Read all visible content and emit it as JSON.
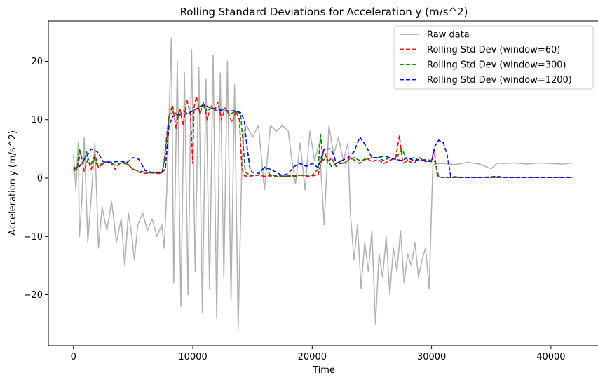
{
  "chart_data": {
    "type": "line",
    "title": "Rolling Standard Deviations for Acceleration y (m/s^2)",
    "xlabel": "Time",
    "ylabel": "Acceleration y (m/s^2)",
    "xlim": [
      -2100,
      44000
    ],
    "ylim": [
      -28.7,
      26.9
    ],
    "xticks": [
      0,
      10000,
      20000,
      30000,
      40000
    ],
    "xtick_labels": [
      "0",
      "10000",
      "20000",
      "30000",
      "40000"
    ],
    "yticks": [
      -20,
      -10,
      0,
      10,
      20
    ],
    "ytick_labels": [
      "−20",
      "−10",
      "0",
      "10",
      "20"
    ],
    "grid": false,
    "legend_position": "top-right",
    "series": [
      {
        "name": "Raw data",
        "color": "#b0b0b0",
        "style": "solid",
        "x": [
          0,
          200,
          400,
          500,
          700,
          900,
          1200,
          1500,
          1800,
          2100,
          2400,
          2800,
          3200,
          3600,
          4000,
          4300,
          4600,
          4900,
          5100,
          5400,
          5800,
          6200,
          6600,
          7000,
          7400,
          7600,
          7800,
          8000,
          8200,
          8400,
          8700,
          9000,
          9300,
          9600,
          9900,
          10200,
          10500,
          10800,
          11100,
          11400,
          11700,
          12000,
          12300,
          12600,
          12900,
          13200,
          13500,
          13800,
          14100,
          14300,
          14500,
          15000,
          15500,
          16000,
          16500,
          17000,
          17500,
          18000,
          18300,
          18600,
          19000,
          19400,
          19800,
          20200,
          20600,
          21000,
          21400,
          21800,
          22200,
          22600,
          23000,
          23200,
          23500,
          23800,
          24100,
          24400,
          24700,
          25000,
          25300,
          25600,
          25900,
          26200,
          26500,
          26800,
          27100,
          27400,
          27700,
          28000,
          28300,
          28600,
          28900,
          29200,
          29500,
          29800,
          30100,
          30300,
          31000,
          32000,
          33000,
          34000,
          35000,
          35500,
          36000,
          37000,
          38000,
          39000,
          40000,
          41000,
          41800
        ],
        "y": [
          4,
          -2,
          6,
          -10,
          -4,
          7,
          -11,
          -3,
          6,
          -12,
          -5,
          -9,
          -4,
          -11,
          -7,
          -15,
          -6,
          -10,
          -14,
          -8,
          -6,
          -9,
          -7,
          -10,
          -8,
          -12,
          -3,
          10,
          24,
          -18,
          20,
          -22,
          18,
          -20,
          22,
          -16,
          19,
          -23,
          17,
          -19,
          21,
          -24,
          18,
          -17,
          20,
          -21,
          16,
          -26,
          2,
          8,
          9,
          7,
          9,
          -2,
          9,
          8,
          9,
          8,
          3,
          -1,
          6,
          -2,
          8,
          3,
          6,
          -8,
          9,
          4,
          7,
          3,
          6,
          -6,
          -14,
          -8,
          -19,
          -11,
          -16,
          -9,
          -25,
          -13,
          -17,
          -10,
          -20,
          -12,
          -16,
          -9,
          -18,
          -13,
          -15,
          -11,
          -17,
          -14,
          -12,
          -19,
          2,
          2.5,
          2.5,
          2.3,
          2.7,
          2.4,
          1.6,
          2.6,
          2.5,
          2.6,
          2.4,
          2.6,
          2.5,
          2.4,
          2.6
        ]
      },
      {
        "name": "Rolling Std Dev (window=60)",
        "color": "#ff0000",
        "style": "dashed",
        "x": [
          0,
          300,
          600,
          900,
          1200,
          1500,
          1800,
          2100,
          2500,
          3000,
          3500,
          4000,
          4500,
          5000,
          5500,
          6000,
          6500,
          7000,
          7400,
          7600,
          7800,
          8000,
          8300,
          8600,
          8900,
          9200,
          9500,
          9800,
          10000,
          10100,
          10300,
          10600,
          10900,
          11200,
          11500,
          11800,
          12100,
          12400,
          12700,
          13000,
          13300,
          13600,
          13900,
          14100,
          14300,
          14600,
          15000,
          15500,
          16000,
          16500,
          17000,
          17500,
          18000,
          18500,
          19000,
          19500,
          20000,
          20500,
          21000,
          21300,
          21600,
          22000,
          22400,
          22800,
          23200,
          23600,
          24000,
          24500,
          25000,
          25500,
          26000,
          26500,
          27000,
          27300,
          27600,
          28000,
          28500,
          29000,
          29500,
          30000,
          30200,
          30500,
          31000,
          32000,
          34000,
          36000,
          38000,
          40000,
          41800
        ],
        "y": [
          1.2,
          1.5,
          4.5,
          1.2,
          3.2,
          1.5,
          4,
          1.8,
          2.5,
          3,
          1.5,
          2.8,
          2.5,
          1.5,
          1,
          0.8,
          0.9,
          0.8,
          0.8,
          3,
          7,
          10.5,
          12.5,
          8.5,
          12,
          9,
          13.5,
          11,
          2.5,
          12,
          14,
          11,
          13,
          10,
          12.5,
          11.5,
          13,
          10,
          12,
          11,
          9.5,
          11.5,
          10,
          2,
          0.4,
          0.3,
          0.4,
          0.5,
          0.3,
          0.4,
          0.3,
          0.3,
          0.4,
          0.3,
          0.5,
          0.3,
          0.4,
          0.5,
          5,
          2.5,
          3.5,
          2,
          3,
          2.5,
          3.5,
          3,
          2.5,
          3.5,
          2.8,
          3.2,
          2.5,
          3,
          3.5,
          7.2,
          2.5,
          3,
          2.5,
          3.5,
          2.8,
          3,
          5,
          0.2,
          0.1,
          0.1,
          0.1,
          0.1,
          0.1,
          0.1,
          0.1
        ]
      },
      {
        "name": "Rolling Std Dev (window=300)",
        "color": "#008000",
        "style": "dashed",
        "x": [
          0,
          300,
          500,
          800,
          1100,
          1400,
          1700,
          2000,
          2500,
          3000,
          3500,
          4000,
          4500,
          5000,
          5500,
          6000,
          6500,
          7000,
          7400,
          7600,
          7800,
          8000,
          8400,
          8800,
          9200,
          9600,
          10000,
          10400,
          10800,
          11200,
          11600,
          12000,
          12400,
          12800,
          13200,
          13600,
          14000,
          14200,
          14400,
          14800,
          15500,
          16000,
          16500,
          17000,
          18000,
          19000,
          20000,
          20500,
          20700,
          20900,
          21200,
          21600,
          22000,
          22500,
          23000,
          23500,
          24000,
          24500,
          25000,
          25500,
          26000,
          26500,
          27000,
          27500,
          28000,
          28500,
          29000,
          29500,
          30000,
          30300,
          30600,
          31000,
          32000,
          34000,
          36000,
          38000,
          40000,
          41800
        ],
        "y": [
          2,
          1.5,
          5,
          2.5,
          4.5,
          2,
          3.5,
          2.2,
          2.5,
          2.8,
          2.2,
          2.6,
          2.4,
          1.5,
          1.2,
          1,
          0.9,
          0.9,
          0.9,
          2.5,
          6,
          10.5,
          11.5,
          10.5,
          11.5,
          11,
          11.5,
          12,
          12.5,
          11.5,
          12,
          11.5,
          11.8,
          11.5,
          11,
          11.5,
          11,
          6,
          1,
          0.5,
          0.5,
          2,
          0.5,
          0.4,
          0.3,
          0.5,
          0.5,
          1.5,
          7.5,
          3,
          3.5,
          2,
          2.5,
          2.5,
          3,
          3.5,
          3,
          3.2,
          3.5,
          3.5,
          3,
          3.5,
          3.2,
          5,
          3,
          3.5,
          3,
          3.2,
          3,
          2.8,
          0.2,
          0.1,
          0.1,
          0.1,
          0.1,
          0.1,
          0.1,
          0.1
        ]
      },
      {
        "name": "Rolling Std Dev (window=1200)",
        "color": "#0000ff",
        "style": "dashed",
        "x": [
          0,
          500,
          1000,
          1500,
          2000,
          2500,
          3000,
          3500,
          4000,
          4500,
          5000,
          5500,
          6000,
          6500,
          7000,
          7400,
          7700,
          8000,
          8300,
          8700,
          9000,
          9500,
          10000,
          10500,
          11000,
          11500,
          12000,
          12500,
          13000,
          13500,
          14000,
          14300,
          14500,
          14800,
          15000,
          15500,
          16000,
          16500,
          17000,
          17500,
          18000,
          18500,
          19000,
          19500,
          20000,
          20500,
          21000,
          21500,
          21800,
          22000,
          22500,
          23000,
          23500,
          24000,
          24500,
          25000,
          25500,
          26000,
          26500,
          27000,
          27500,
          28000,
          28500,
          29000,
          29500,
          30000,
          30300,
          30600,
          31000,
          31300,
          31600,
          32000,
          33000,
          34000,
          35000,
          35500,
          36000,
          38000,
          40000,
          41800
        ],
        "y": [
          1.5,
          2,
          3.5,
          5,
          4.5,
          2.8,
          2.7,
          2.8,
          2.9,
          2.7,
          3.5,
          3.2,
          1.3,
          1,
          1,
          1,
          1.5,
          9,
          10.5,
          10.8,
          11,
          11,
          11.5,
          12,
          12.5,
          12,
          11.8,
          11.5,
          11.5,
          11.5,
          11.2,
          10,
          6,
          1.5,
          1,
          0.8,
          1.8,
          1.5,
          1,
          0.4,
          0.8,
          2,
          2.5,
          2,
          2.5,
          1.8,
          5,
          5,
          4,
          2.5,
          3,
          3.5,
          4.5,
          7,
          5.5,
          3.5,
          3.5,
          3.8,
          3.5,
          3.2,
          3,
          3.5,
          3,
          3.2,
          3,
          2.8,
          5.5,
          6.5,
          6,
          4,
          0.3,
          0.2,
          0.1,
          0.1,
          0.2,
          0.3,
          0.1,
          0.1,
          0.1,
          0.1
        ]
      }
    ]
  }
}
